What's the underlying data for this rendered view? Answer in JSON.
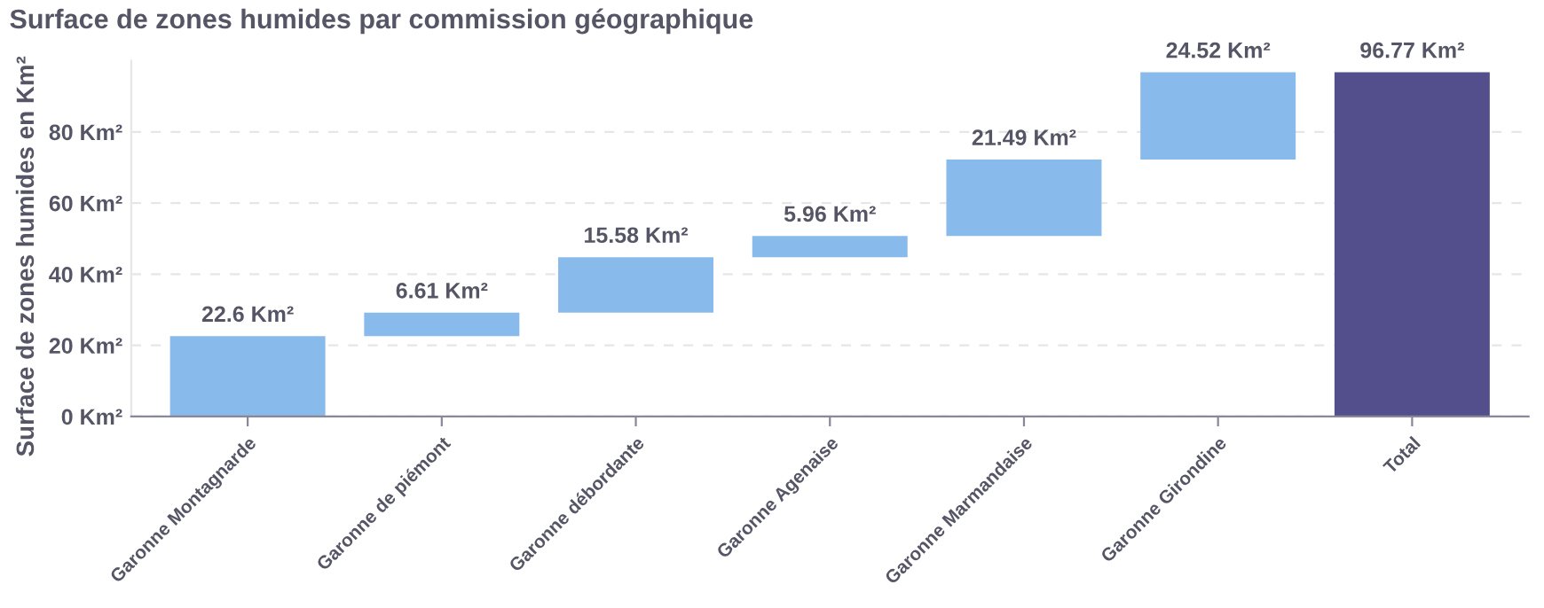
{
  "chart_data": {
    "type": "bar",
    "title": "Surface de zones humides par commission géographique",
    "ylabel": "Surface de zones humides en Km²",
    "categories": [
      "Garonne Montagnarde",
      "Garonne de piémont",
      "Garonne débordante",
      "Garonne Agenaise",
      "Garonne Marmandaise",
      "Garonne Girondine",
      "Total"
    ],
    "values": [
      22.6,
      6.61,
      15.58,
      5.96,
      21.49,
      24.52,
      96.77
    ],
    "base": [
      0,
      22.6,
      29.21,
      44.79,
      50.75,
      72.24,
      0
    ],
    "colors": [
      "#88bbec",
      "#88bbec",
      "#88bbec",
      "#88bbec",
      "#88bbec",
      "#88bbec",
      "#524f8c"
    ],
    "value_labels": [
      "22.6 Km²",
      "6.61 Km²",
      "15.58 Km²",
      "5.96 Km²",
      "21.49 Km²",
      "24.52 Km²",
      "96.77 Km²"
    ],
    "ylim": [
      0,
      100
    ],
    "yticks": [
      {
        "value": 0,
        "label": "0 Km²"
      },
      {
        "value": 20,
        "label": "20 Km²"
      },
      {
        "value": 40,
        "label": "40 Km²"
      },
      {
        "value": 60,
        "label": "60 Km²"
      },
      {
        "value": 80,
        "label": "80 Km²"
      }
    ],
    "grid": "y",
    "legend": false
  }
}
